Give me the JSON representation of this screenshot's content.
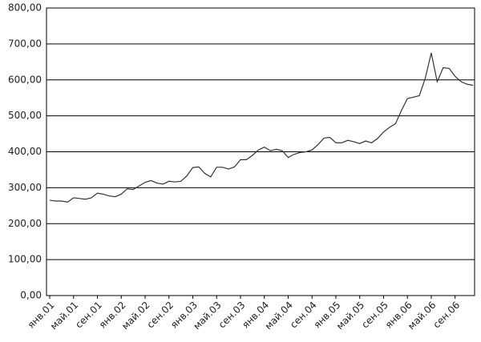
{
  "chart_data": {
    "type": "line",
    "categories": [
      "янв.01",
      null,
      null,
      null,
      "май.01",
      null,
      null,
      null,
      "сен.01",
      null,
      null,
      null,
      "янв.02",
      null,
      null,
      null,
      "май.02",
      null,
      null,
      null,
      "сен.02",
      null,
      null,
      null,
      "янв.03",
      null,
      null,
      null,
      "май.03",
      null,
      null,
      null,
      "сен.03",
      null,
      null,
      null,
      "янв.04",
      null,
      null,
      null,
      "май.04",
      null,
      null,
      null,
      "сен.04",
      null,
      null,
      null,
      "янв.05",
      null,
      null,
      null,
      "май.05",
      null,
      null,
      null,
      "сен.05",
      null,
      null,
      null,
      "янв.06",
      null,
      null,
      null,
      "май.06",
      null,
      null,
      null,
      "сен.06",
      null,
      null,
      null
    ],
    "values": [
      265,
      263,
      263,
      260,
      272,
      270,
      268,
      272,
      285,
      282,
      277,
      275,
      282,
      297,
      295,
      305,
      315,
      320,
      313,
      310,
      318,
      316,
      318,
      333,
      356,
      358,
      340,
      330,
      357,
      357,
      352,
      358,
      378,
      378,
      390,
      405,
      413,
      403,
      407,
      403,
      384,
      393,
      398,
      400,
      405,
      420,
      438,
      440,
      425,
      425,
      432,
      428,
      423,
      430,
      425,
      437,
      455,
      468,
      478,
      515,
      548,
      552,
      556,
      605,
      675,
      595,
      634,
      632,
      610,
      595,
      588,
      585
    ],
    "color": "#333333",
    "ylim": [
      0,
      800
    ],
    "yticks": [
      {
        "value": 0,
        "label": "0,00"
      },
      {
        "value": 100,
        "label": "100,00"
      },
      {
        "value": 200,
        "label": "200,00"
      },
      {
        "value": 300,
        "label": "300,00"
      },
      {
        "value": 400,
        "label": "400,00"
      },
      {
        "value": 500,
        "label": "500,00"
      },
      {
        "value": 600,
        "label": "600,00"
      },
      {
        "value": 700,
        "label": "700,00"
      },
      {
        "value": 800,
        "label": "800,00"
      }
    ],
    "grid": true
  }
}
